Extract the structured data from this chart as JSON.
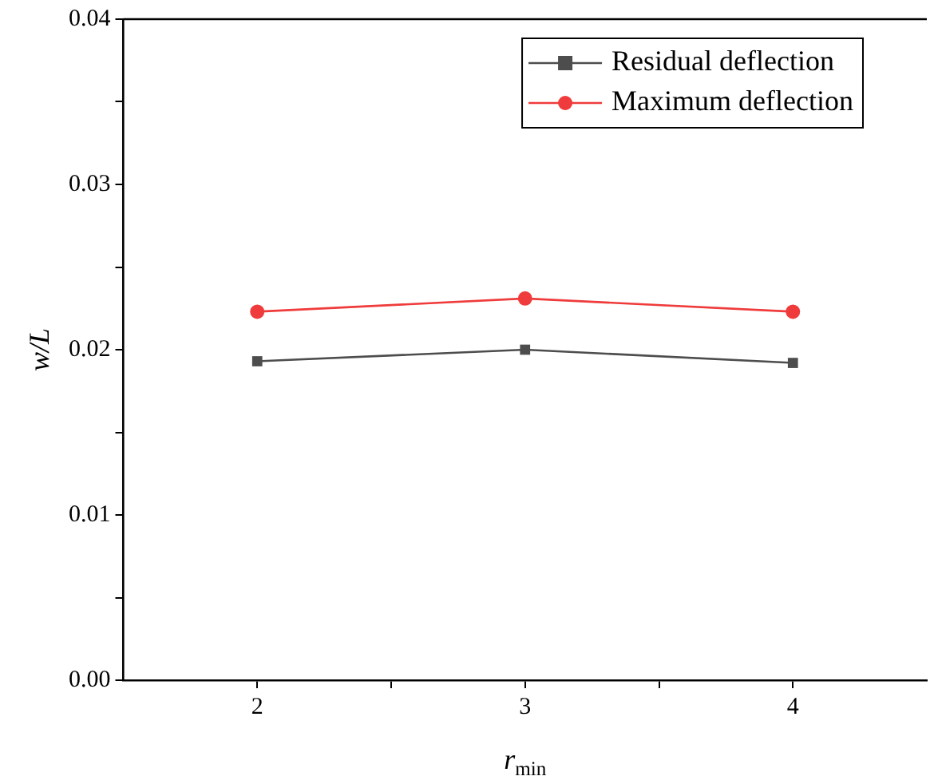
{
  "chart_data": {
    "type": "line",
    "xlabel": "r$_{min}$",
    "ylabel": "w/L",
    "x": [
      2,
      3,
      4
    ],
    "series": [
      {
        "name": "Residual deflection",
        "color": "#4d4d4d",
        "marker": "square",
        "values": [
          0.0193,
          0.02,
          0.0192
        ]
      },
      {
        "name": "Maximum deflection",
        "color": "#ef3b3b",
        "marker": "circle",
        "values": [
          0.0223,
          0.0231,
          0.0223
        ]
      }
    ],
    "xlim": [
      1.5,
      4.5
    ],
    "xticks": [
      2,
      {
        "value": 2.5,
        "label": null
      },
      3,
      {
        "value": 3.5,
        "label": null
      },
      4
    ],
    "ylim": [
      0,
      0.04
    ],
    "yticks": [
      {
        "value": 0,
        "label": "0.00"
      },
      {
        "value": 0.005,
        "label": null
      },
      {
        "value": 0.01,
        "label": "0.01"
      },
      {
        "value": 0.015,
        "label": null
      },
      {
        "value": 0.02,
        "label": "0.02"
      },
      {
        "value": 0.025,
        "label": null
      },
      {
        "value": 0.03,
        "label": "0.03"
      },
      {
        "value": 0.035,
        "label": null
      },
      {
        "value": 0.04,
        "label": "0.04"
      }
    ],
    "grid": false,
    "legend": "top right",
    "line_style": "solid"
  }
}
